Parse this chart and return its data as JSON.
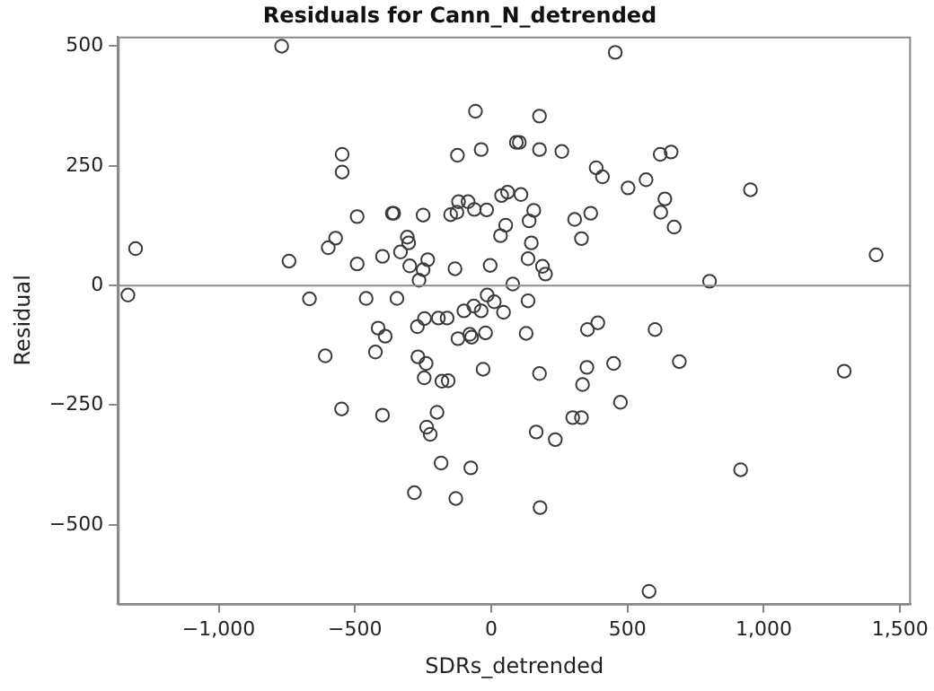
{
  "chart_data": {
    "type": "scatter",
    "title": "Residuals for Cann_N_detrended",
    "xlabel": "SDRs_detrended",
    "ylabel": "Residual",
    "xlim": [
      -1370,
      1540
    ],
    "ylim": [
      -665,
      520
    ],
    "xticks": [
      {
        "value": -1000,
        "label": "−1,000"
      },
      {
        "value": -500,
        "label": "−500"
      },
      0,
      500,
      {
        "value": 1000,
        "label": "1,000"
      },
      {
        "value": 1500,
        "label": "1,500"
      }
    ],
    "yticks": [
      {
        "value": -500,
        "label": "−500"
      },
      {
        "value": -250,
        "label": "−250"
      },
      0,
      250,
      500
    ],
    "grid": false,
    "legend": false,
    "marker": "circle",
    "ref_lines": [
      {
        "axis": "y",
        "value": 0,
        "label": null,
        "color": "#8c8c8c"
      }
    ],
    "series": [
      {
        "color": "#3a3a3a",
        "x": [
          -769,
          -1305,
          -1333,
          -742,
          -667,
          -547,
          -547,
          -492,
          -598,
          -571,
          -492,
          -459,
          -399,
          -363,
          -358,
          -346,
          -333,
          -308,
          -303,
          -299,
          -250,
          -233,
          -250,
          -265,
          -149,
          -126,
          -120,
          -85,
          -62,
          -17,
          -124,
          -37,
          -58,
          -133,
          -4,
          -15,
          -194,
          -162,
          -245,
          -271,
          -415,
          -100,
          -64,
          -37,
          455,
          177,
          92,
          103,
          177,
          259,
          385,
          408,
          502,
          568,
          620,
          660,
          637,
          622,
          671,
          951,
          1412,
          801,
          38,
          60,
          109,
          156,
          139,
          53,
          34,
          306,
          365,
          331,
          147,
          135,
          188,
          199,
          79,
          11,
          45,
          135,
          353,
          391,
          601,
          128,
          -21,
          -79,
          -30,
          177,
          351,
          449,
          690,
          335,
          474,
          299,
          331,
          165,
          235,
          -75,
          179,
          915,
          1295,
          579,
          -130,
          -389,
          -122,
          -72,
          -609,
          -425,
          -269,
          -239,
          -246,
          -181,
          -158,
          -549,
          -399,
          -199,
          -237,
          -224,
          -184,
          -282
        ],
        "values": [
          500,
          77,
          -20,
          51,
          -28,
          274,
          237,
          144,
          79,
          99,
          45,
          -27,
          61,
          151,
          151,
          -27,
          70,
          101,
          89,
          41,
          147,
          54,
          33,
          11,
          148,
          153,
          175,
          175,
          159,
          158,
          272,
          284,
          364,
          35,
          42,
          -20,
          -68,
          -68,
          -69,
          -86,
          -89,
          -53,
          -43,
          -53,
          487,
          354,
          299,
          299,
          284,
          280,
          246,
          227,
          204,
          221,
          274,
          279,
          181,
          153,
          122,
          200,
          64,
          9,
          188,
          195,
          190,
          157,
          135,
          126,
          104,
          138,
          151,
          98,
          89,
          56,
          40,
          24,
          3,
          -34,
          -56,
          -32,
          -92,
          -78,
          -92,
          -100,
          -99,
          -102,
          -175,
          -184,
          -171,
          -163,
          -159,
          -207,
          -244,
          -276,
          -276,
          -306,
          -322,
          -381,
          -464,
          -385,
          -179,
          -639,
          -445,
          -106,
          -111,
          -108,
          -147,
          -139,
          -149,
          -163,
          -193,
          -200,
          -199,
          -258,
          -271,
          -265,
          -296,
          -311,
          -371,
          -433
        ]
      }
    ]
  }
}
